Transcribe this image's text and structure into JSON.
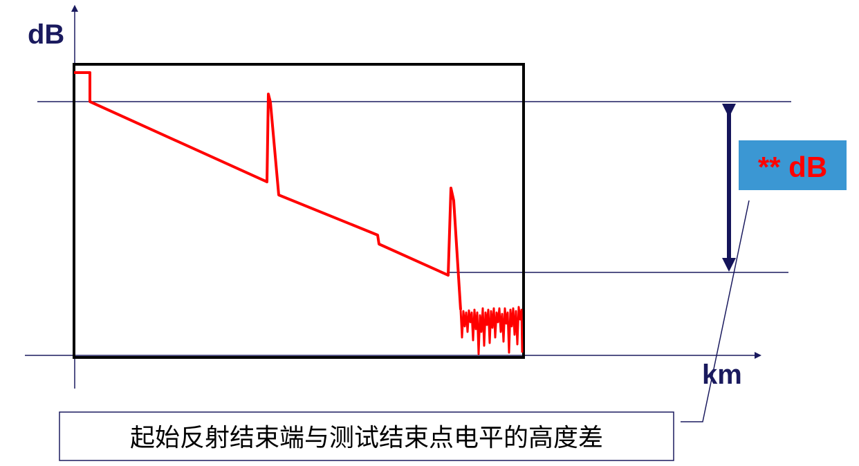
{
  "diagram": {
    "y_axis_label": "dB",
    "x_axis_label": "km",
    "value_label": "** dB",
    "caption": "起始反射结束端与测试结束点电平的高度差"
  },
  "colors": {
    "axis": "#1a1a5e",
    "trace": "#ff0000",
    "frame": "#000000",
    "value_box": "#3b97d3",
    "value_text": "#ff0000",
    "arrow": "#14145a",
    "caption_border": "#1a1a5e"
  }
}
